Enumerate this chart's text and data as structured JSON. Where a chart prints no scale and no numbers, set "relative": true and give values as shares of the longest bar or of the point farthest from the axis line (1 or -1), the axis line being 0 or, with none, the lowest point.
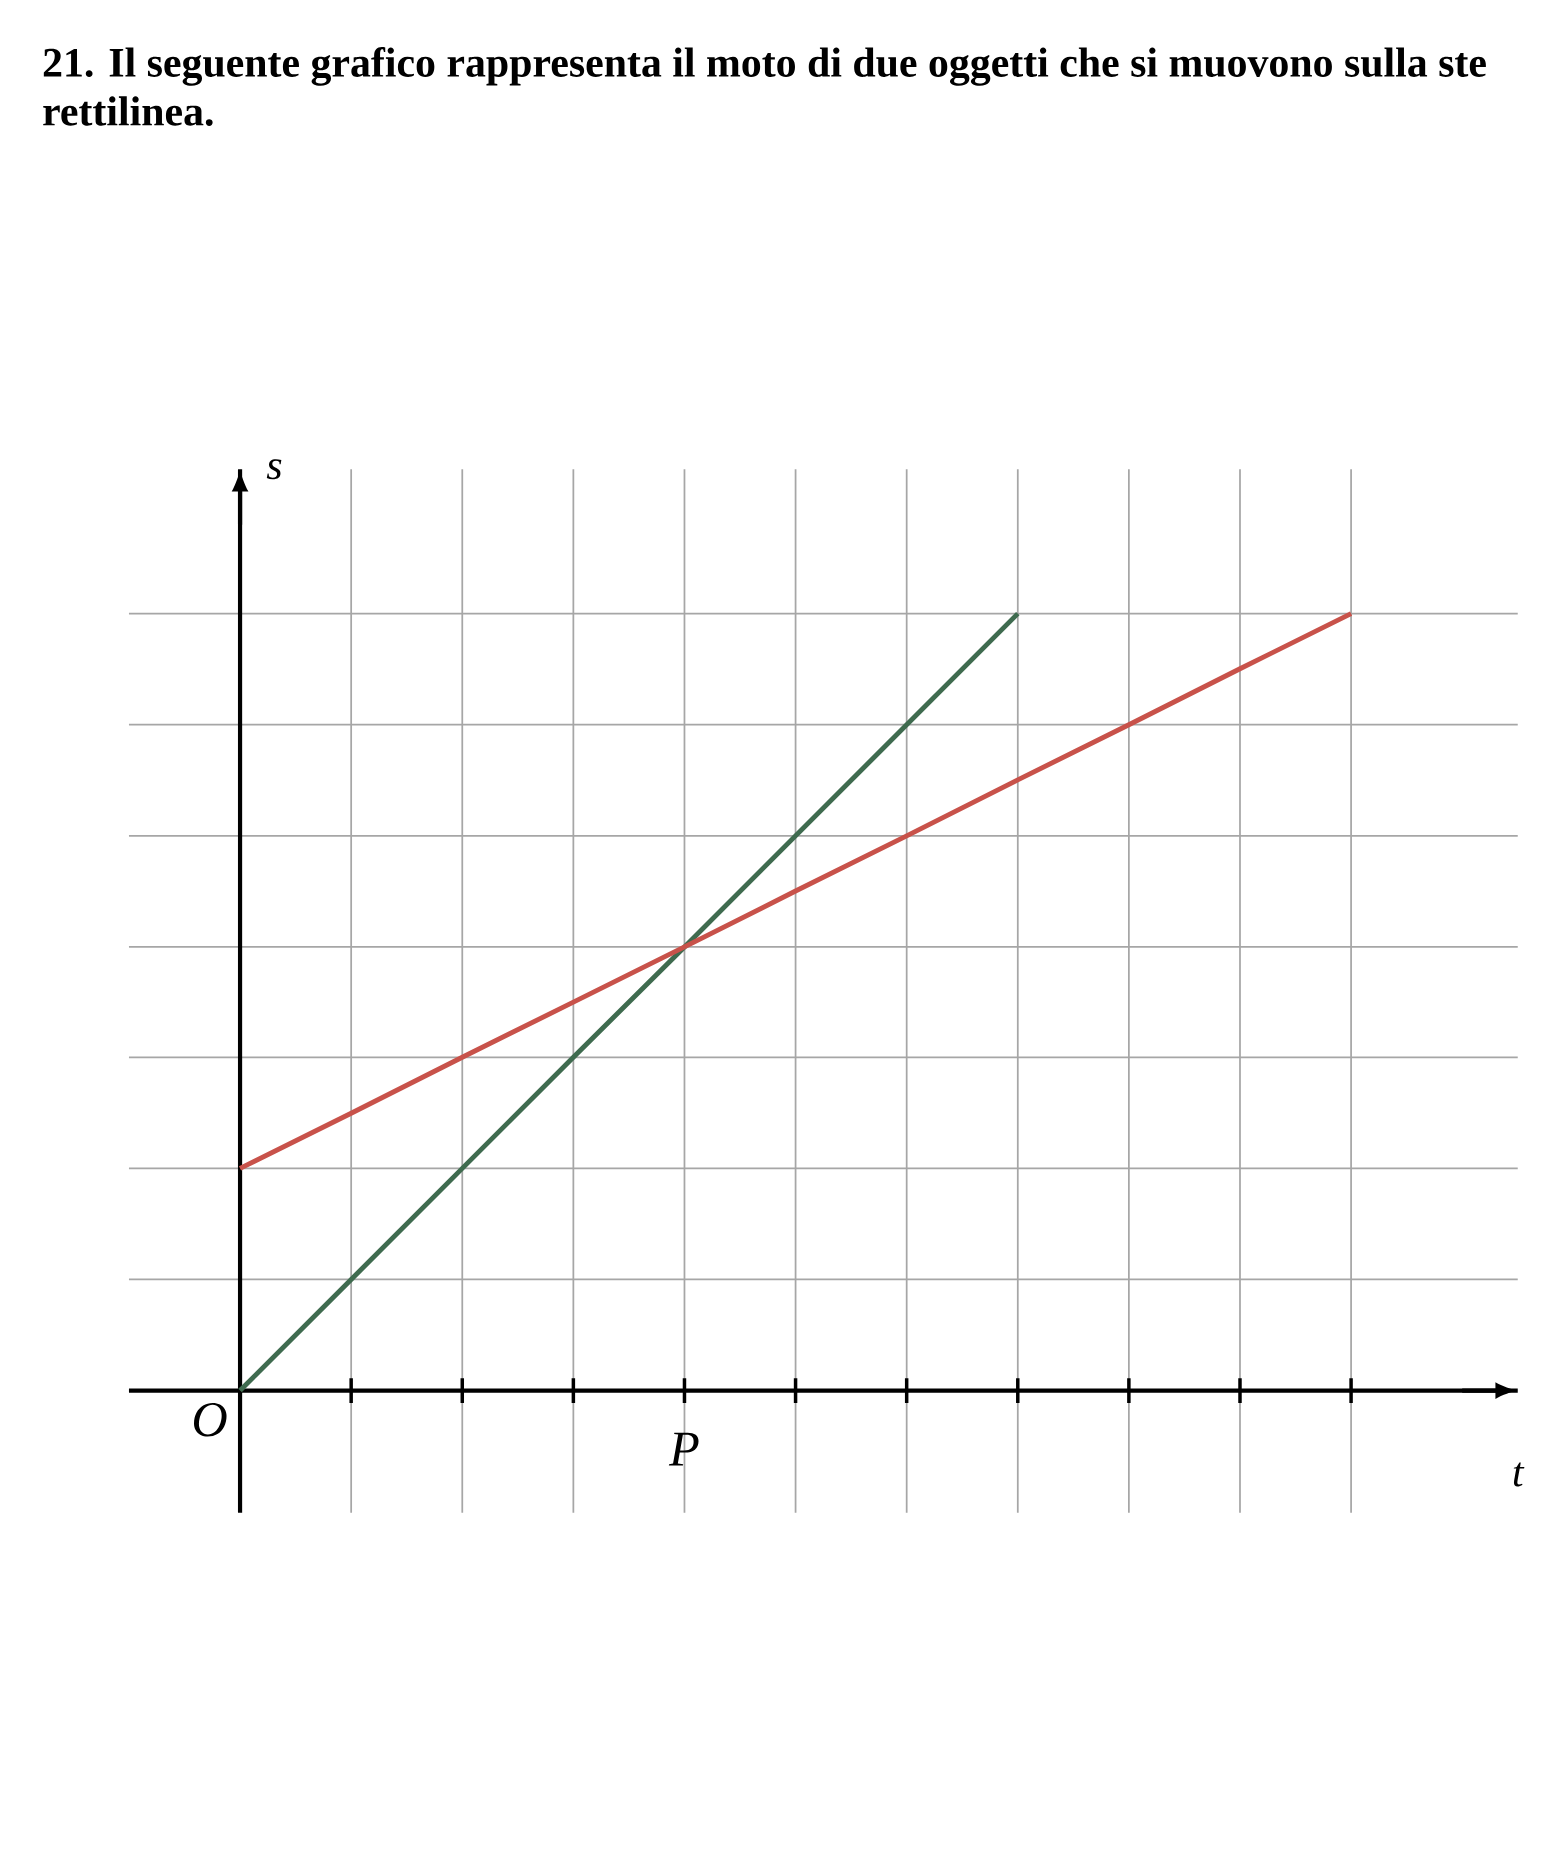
{
  "chart_data": {
    "type": "line",
    "title": "21. Il seguente grafico rappresenta il moto di due oggetti che si muovono sulla ste",
    "subtitle": "rettilinea.",
    "xlabel": "t",
    "ylabel": "s",
    "relative": true,
    "grid": true,
    "categories": [
      null,
      null,
      null,
      null,
      null,
      null,
      null,
      null,
      null,
      null,
      null
    ],
    "series": [
      {
        "color": "#3f6b4f",
        "values": [
          0,
          0.143,
          0.286,
          0.429,
          0.571,
          0.714,
          0.857,
          1,
          null,
          null,
          null
        ]
      },
      {
        "color": "#c8524a",
        "values": [
          0.286,
          0.357,
          0.429,
          0.5,
          0.571,
          0.643,
          0.714,
          0.786,
          0.857,
          0.929,
          1
        ]
      }
    ],
    "annotations": [
      "O",
      "P"
    ]
  }
}
